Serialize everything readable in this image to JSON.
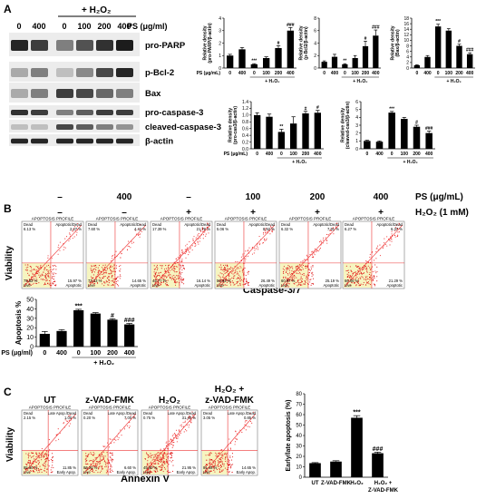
{
  "panels": {
    "A": "A",
    "B": "B",
    "C": "C"
  },
  "blot_a": {
    "treatment_header": "+ H₂O₂",
    "ps_label": "PS (μg/ml)",
    "lane_labels": [
      "0",
      "400",
      "0",
      "100",
      "200",
      "400"
    ],
    "rows": [
      "pro-PARP",
      "p-Bcl-2",
      "Bax",
      "pro-caspase-3",
      "cleaved-caspase-3",
      "β-actin"
    ]
  },
  "common": {
    "ps_axis_label": "PS (μg/mL)",
    "ps_axis_label_b": "PS (μg/ml)",
    "h2o2_group": "+ H₂O₂",
    "x_labels": [
      "0",
      "400",
      "0",
      "100",
      "200",
      "400"
    ]
  },
  "chart_data": [
    {
      "id": "a-pro-parp",
      "type": "bar",
      "ylabel": "Relative density (pro-PARP/β-actin)",
      "yticks": [
        "0",
        "1",
        "2",
        "3",
        "4"
      ],
      "ylim": [
        0,
        4
      ],
      "values": [
        1.0,
        1.5,
        0.3,
        0.8,
        1.6,
        3.0
      ],
      "errors": [
        0.1,
        0.15,
        0.05,
        0.1,
        0.2,
        0.25
      ],
      "marks": [
        "",
        "",
        "***",
        "",
        "#",
        "###"
      ]
    },
    {
      "id": "a-p-bcl2",
      "type": "bar",
      "ylabel": "Relative density (p-Bcl2/β-actin)",
      "yticks": [
        "0",
        "2",
        "4",
        "6",
        "8"
      ],
      "ylim": [
        0,
        8
      ],
      "values": [
        1.0,
        1.8,
        0.6,
        1.6,
        3.5,
        5.2
      ],
      "errors": [
        0.15,
        0.4,
        0.1,
        0.4,
        0.8,
        0.9
      ],
      "marks": [
        "",
        "",
        "**",
        "",
        "#",
        "###"
      ]
    },
    {
      "id": "a-bax",
      "type": "bar",
      "ylabel": "Relative density (Bax/β-actin)",
      "yticks": [
        "0",
        "2",
        "4",
        "6",
        "8",
        "10",
        "12",
        "14",
        "16",
        "18"
      ],
      "ylim": [
        0,
        18
      ],
      "values": [
        1.0,
        4.0,
        15.0,
        13.5,
        8.0,
        5.0
      ],
      "errors": [
        0.2,
        0.5,
        0.8,
        0.7,
        0.6,
        0.5
      ],
      "marks": [
        "",
        "",
        "***",
        "",
        "#",
        "###"
      ]
    },
    {
      "id": "a-pro-caspase3",
      "type": "bar",
      "ylabel": "Relative density (pro-cas3/β-actin)",
      "yticks": [
        "0.0",
        "0.2",
        "0.4",
        "0.6",
        "0.8",
        "1.0",
        "1.2",
        "1.4"
      ],
      "ylim": [
        0,
        1.4
      ],
      "values": [
        1.0,
        0.95,
        0.5,
        0.75,
        1.05,
        1.07
      ],
      "errors": [
        0.07,
        0.08,
        0.08,
        0.2,
        0.06,
        0.07
      ],
      "marks": [
        "",
        "",
        "**",
        "",
        "#",
        "#"
      ]
    },
    {
      "id": "a-cleaved-caspase3",
      "type": "bar",
      "ylabel": "Relative density (cleaved-cas3/β-actin)",
      "yticks": [
        "0",
        "1",
        "2",
        "3",
        "4",
        "5",
        "6"
      ],
      "ylim": [
        0,
        6
      ],
      "values": [
        1.0,
        0.9,
        4.6,
        3.8,
        2.8,
        2.0
      ],
      "errors": [
        0.1,
        0.1,
        0.15,
        0.2,
        0.2,
        0.25
      ],
      "marks": [
        "",
        "",
        "***",
        "",
        "#",
        "###"
      ]
    },
    {
      "id": "b-apoptosis",
      "type": "bar",
      "ylabel": "Apoptosis %",
      "yticks": [
        "0",
        "10",
        "20",
        "30",
        "40",
        "50"
      ],
      "ylim": [
        0,
        50
      ],
      "values": [
        13.5,
        16.5,
        38.5,
        35.0,
        28.5,
        23.5
      ],
      "errors": [
        2.5,
        1.5,
        1.0,
        1.0,
        1.0,
        1.0
      ],
      "marks": [
        "",
        "",
        "***",
        "",
        "#",
        "###"
      ]
    },
    {
      "id": "c-early-late-apoptosis",
      "type": "bar",
      "ylabel": "Early/late apoptosis (%)",
      "yticks": [
        "0",
        "10",
        "20",
        "30",
        "40",
        "50",
        "60",
        "70",
        "80"
      ],
      "ylim": [
        0,
        80
      ],
      "categories": [
        "UT",
        "Z-VAD-FMK",
        "H₂O₂",
        "H₂O₂ + Z-VAD-FMK"
      ],
      "values": [
        13.5,
        15.0,
        57.0,
        23.0
      ],
      "errors": [
        0.5,
        0.8,
        2.0,
        1.0
      ],
      "marks": [
        "",
        "",
        "***",
        "###"
      ]
    }
  ],
  "panel_b": {
    "conditions": [
      {
        "ps": "–",
        "h2o2": "–"
      },
      {
        "ps": "400",
        "h2o2": "–"
      },
      {
        "ps": "–",
        "h2o2": "+"
      },
      {
        "ps": "100",
        "h2o2": "+"
      },
      {
        "ps": "200",
        "h2o2": "+"
      },
      {
        "ps": "400",
        "h2o2": "+"
      }
    ],
    "ps_row_label": "PS (μg/mL)",
    "h2o2_row_label": "H₂O₂ (1 mM)",
    "plot_title": "APOPTOSIS PROFILE",
    "q_dead": "Dead",
    "q_apop_dead": "Apoptotic/Dead",
    "q_live": "Live",
    "q_apoptotic": "Apoptotic",
    "plots": [
      {
        "dead": "6.13 %",
        "apop_dead": "2.27 %",
        "live": "75.82 %",
        "apoptotic": "15.97 %"
      },
      {
        "dead": "7.60 %",
        "apop_dead": "4.42 %",
        "live": "73.23 %",
        "apoptotic": "14.65 %"
      },
      {
        "dead": "17.39 %",
        "apop_dead": "21.70 %",
        "live": "44.77 %",
        "apoptotic": "16.14 %"
      },
      {
        "dead": "5.06 %",
        "apop_dead": "8.52 %",
        "live": "59.93 %",
        "apoptotic": "26.49 %"
      },
      {
        "dead": "6.32 %",
        "apop_dead": "7.51 %",
        "live": "60.97 %",
        "apoptotic": "25.19 %"
      },
      {
        "dead": "6.27 %",
        "apop_dead": "6.37 %",
        "live": "66.06 %",
        "apoptotic": "21.29 %"
      }
    ],
    "y_axis": "Viability",
    "x_axis": "Caspase-3/7"
  },
  "panel_c": {
    "conditions": [
      "UT",
      "z-VAD-FMK",
      "H₂O₂",
      "H₂O₂ + z-VAD-FMK"
    ],
    "plot_title": "APOPTOSIS PROFILE",
    "q_dead": "Dead",
    "q_late": "Late Apop./Dead",
    "q_live": "Live",
    "q_early": "Early Apop.",
    "plots": [
      {
        "dead": "2.15 %",
        "late": "1.00 %",
        "live": "85.00 %",
        "early": "11.85 %"
      },
      {
        "dead": "0.20 %",
        "late": "7.00 %",
        "live": "86.20 %",
        "early": "6.60 %"
      },
      {
        "dead": "0.75 %",
        "late": "31.40 %",
        "live": "45.90 %",
        "early": "21.95 %"
      },
      {
        "dead": "3.05 %",
        "late": "0.85 %",
        "live": "81.45 %",
        "early": "14.65 %"
      }
    ],
    "y_axis": "Viability",
    "x_axis": "Annexin V"
  }
}
